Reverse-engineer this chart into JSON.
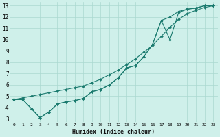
{
  "title": "",
  "xlabel": "Humidex (Indice chaleur)",
  "ylabel": "",
  "bg_color": "#cff0ea",
  "grid_color": "#aad8d0",
  "line_color": "#1a7a6e",
  "xlim": [
    -0.5,
    23.5
  ],
  "ylim": [
    2.7,
    13.3
  ],
  "xticks": [
    0,
    1,
    2,
    3,
    4,
    5,
    6,
    7,
    8,
    9,
    10,
    11,
    12,
    13,
    14,
    15,
    16,
    17,
    18,
    19,
    20,
    21,
    22,
    23
  ],
  "yticks": [
    3,
    4,
    5,
    6,
    7,
    8,
    9,
    10,
    11,
    12,
    13
  ],
  "line1_x": [
    0,
    1,
    2,
    3,
    4,
    5,
    6,
    7,
    8,
    9,
    10,
    11,
    12,
    13,
    14,
    15,
    16,
    17,
    18,
    19,
    20,
    21,
    22,
    23
  ],
  "line1_y": [
    4.7,
    4.85,
    5.0,
    5.15,
    5.3,
    5.45,
    5.6,
    5.75,
    5.9,
    6.2,
    6.5,
    6.9,
    7.3,
    7.8,
    8.3,
    8.9,
    9.5,
    10.3,
    11.1,
    11.8,
    12.3,
    12.6,
    12.85,
    13.0
  ],
  "line2_x": [
    0,
    1,
    2,
    3,
    4,
    5,
    6,
    7,
    8,
    9,
    10,
    11,
    12,
    13,
    14,
    15,
    16,
    17,
    18,
    19,
    20,
    21,
    22,
    23
  ],
  "line2_y": [
    4.7,
    4.7,
    3.9,
    3.1,
    3.6,
    4.3,
    4.5,
    4.6,
    4.8,
    5.4,
    5.6,
    6.0,
    6.6,
    7.5,
    7.7,
    8.5,
    9.6,
    11.7,
    12.0,
    12.5,
    12.7,
    12.8,
    13.0,
    13.0
  ],
  "line3_x": [
    0,
    1,
    2,
    3,
    4,
    5,
    6,
    7,
    8,
    9,
    10,
    11,
    12,
    13,
    14,
    15,
    16,
    17,
    18,
    19,
    20,
    21,
    22,
    23
  ],
  "line3_y": [
    4.7,
    4.7,
    3.9,
    3.1,
    3.6,
    4.3,
    4.5,
    4.6,
    4.8,
    5.4,
    5.6,
    6.0,
    6.6,
    7.5,
    7.7,
    8.5,
    9.6,
    11.7,
    10.0,
    12.4,
    12.7,
    12.8,
    13.0,
    13.0
  ],
  "marker_size": 2.0,
  "line_width": 0.8,
  "tick_fontsize_x": 4.5,
  "tick_fontsize_y": 5.5,
  "xlabel_fontsize": 6.0
}
